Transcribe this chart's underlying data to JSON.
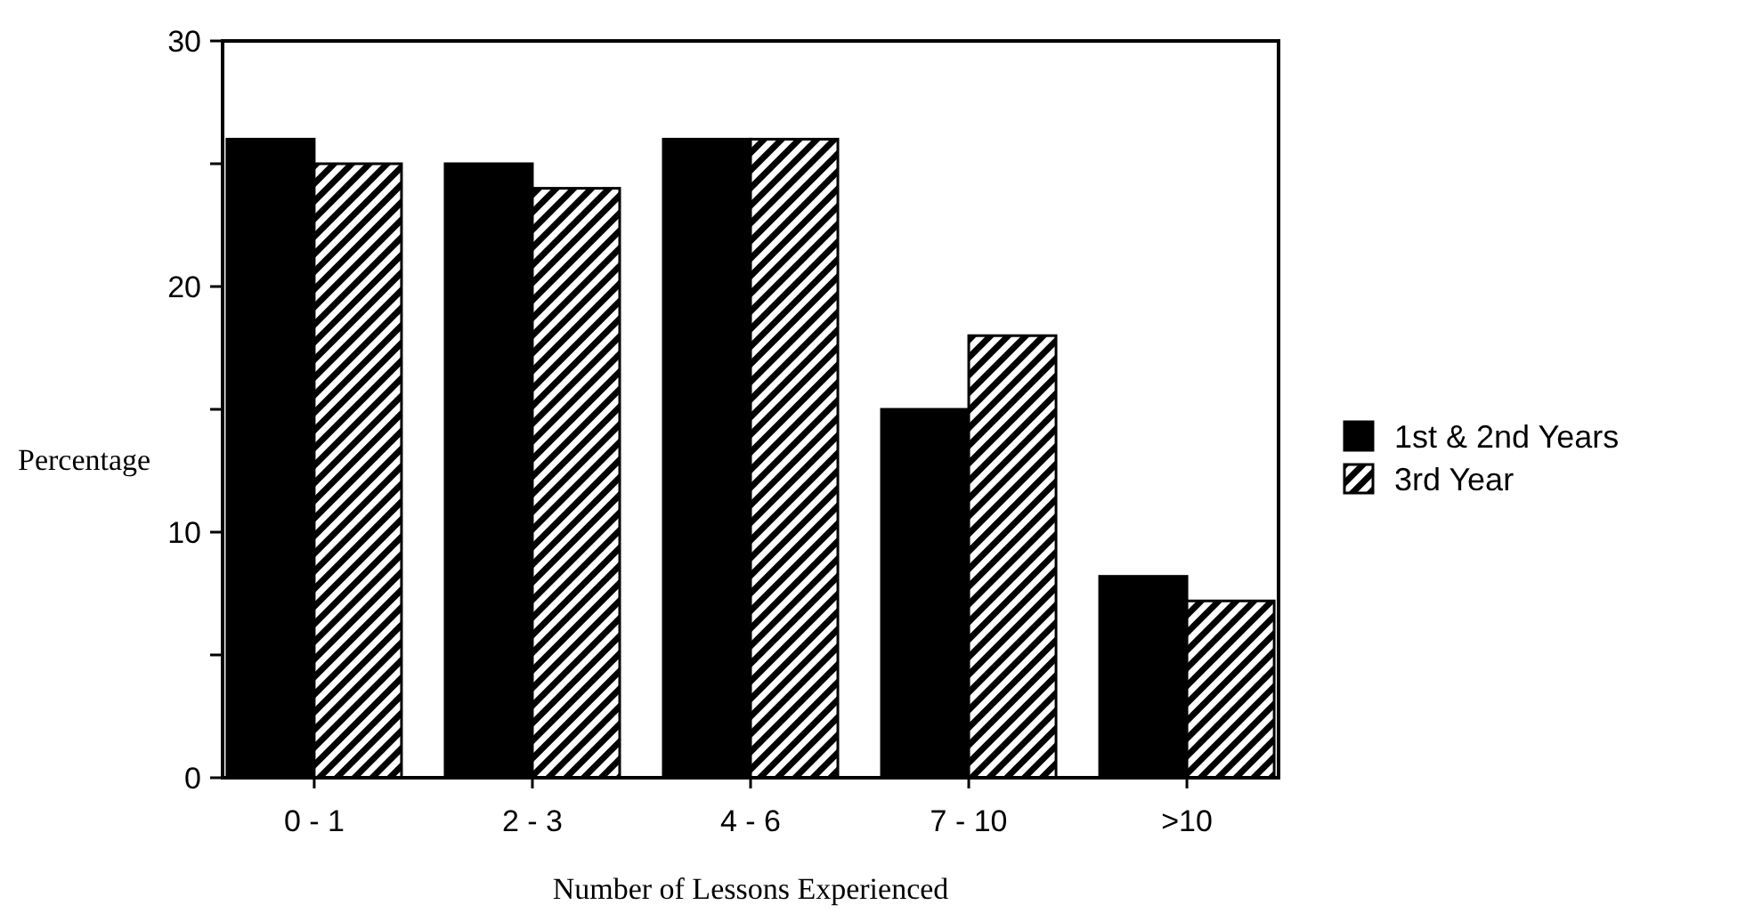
{
  "chart_data": {
    "type": "bar",
    "xlabel": "Number of Lessons Experienced",
    "ylabel": "Percentage",
    "categories": [
      "0 - 1",
      "2 - 3",
      "4 - 6",
      "7 - 10",
      ">10"
    ],
    "series": [
      {
        "name": "1st & 2nd Years",
        "color": "#000000",
        "values": [
          26,
          25,
          26,
          15,
          8.2
        ]
      },
      {
        "name": "3rd Year",
        "color": "#000000",
        "values": [
          25,
          24,
          26,
          18,
          7.2
        ]
      }
    ],
    "ylim": [
      0,
      30
    ],
    "yticks": [
      0,
      {
        "value": 5,
        "label": null
      },
      10,
      {
        "value": 15,
        "label": null
      },
      20,
      {
        "value": 25,
        "label": null
      },
      30
    ],
    "grid": false,
    "legend": "right"
  }
}
